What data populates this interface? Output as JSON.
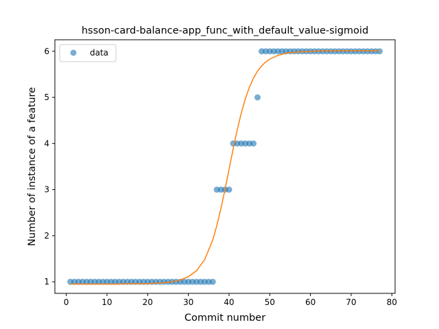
{
  "chart_data": {
    "type": "scatter",
    "title": "hsson-card-balance-app_func_with_default_value-sigmoid",
    "xlabel": "Commit number",
    "ylabel": "Number of instance of a feature",
    "xlim": [
      -2.8,
      80.8
    ],
    "ylim": [
      0.75,
      6.25
    ],
    "xticks": [
      0,
      10,
      20,
      30,
      40,
      50,
      60,
      70,
      80
    ],
    "yticks": [
      1,
      2,
      3,
      4,
      5,
      6
    ],
    "grid": false,
    "legend": {
      "position": "top-left",
      "entries": [
        "data"
      ]
    },
    "colors": {
      "points": "#1f77b4",
      "curve": "#ff7f0e"
    },
    "series": [
      {
        "name": "data",
        "kind": "scatter",
        "x": [
          1,
          2,
          3,
          4,
          5,
          6,
          7,
          8,
          9,
          10,
          11,
          12,
          13,
          14,
          15,
          16,
          17,
          18,
          19,
          20,
          21,
          22,
          23,
          24,
          25,
          26,
          27,
          28,
          29,
          30,
          31,
          32,
          33,
          34,
          35,
          36,
          37,
          38,
          39,
          40,
          41,
          42,
          43,
          44,
          45,
          46,
          47,
          48,
          49,
          50,
          51,
          52,
          53,
          54,
          55,
          56,
          57,
          58,
          59,
          60,
          61,
          62,
          63,
          64,
          65,
          66,
          67,
          68,
          69,
          70,
          71,
          72,
          73,
          74,
          75,
          76,
          77
        ],
        "y": [
          1,
          1,
          1,
          1,
          1,
          1,
          1,
          1,
          1,
          1,
          1,
          1,
          1,
          1,
          1,
          1,
          1,
          1,
          1,
          1,
          1,
          1,
          1,
          1,
          1,
          1,
          1,
          1,
          1,
          1,
          1,
          1,
          1,
          1,
          1,
          1,
          3,
          3,
          3,
          3,
          4,
          4,
          4,
          4,
          4,
          4,
          5,
          6,
          6,
          6,
          6,
          6,
          6,
          6,
          6,
          6,
          6,
          6,
          6,
          6,
          6,
          6,
          6,
          6,
          6,
          6,
          6,
          6,
          6,
          6,
          6,
          6,
          6,
          6,
          6,
          6,
          6
        ]
      },
      {
        "kind": "line",
        "x": [
          1,
          4,
          8,
          12,
          16,
          20,
          24,
          26,
          28,
          30,
          32,
          34,
          36,
          37,
          38,
          39,
          40,
          41,
          42,
          43,
          44,
          45,
          46,
          47,
          48,
          49,
          50,
          52,
          54,
          56,
          58,
          60,
          64,
          68,
          72,
          77
        ],
        "y": [
          0.95,
          0.95,
          0.95,
          0.95,
          0.96,
          0.96,
          0.98,
          1.0,
          1.04,
          1.11,
          1.24,
          1.48,
          1.91,
          2.22,
          2.59,
          3.0,
          3.44,
          3.88,
          4.29,
          4.66,
          4.97,
          5.22,
          5.42,
          5.57,
          5.68,
          5.77,
          5.83,
          5.91,
          5.96,
          5.98,
          5.99,
          6.0,
          6.01,
          6.01,
          6.01,
          6.01
        ]
      }
    ]
  }
}
